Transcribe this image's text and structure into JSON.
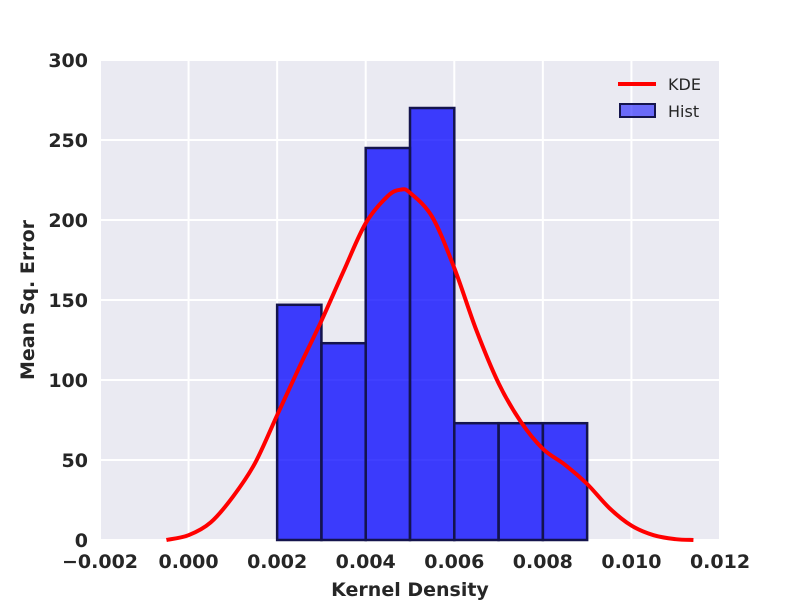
{
  "chart_data": {
    "type": "bar",
    "xlabel": "Kernel Density",
    "ylabel": "Mean Sq. Error",
    "xlim": [
      -0.002,
      0.012
    ],
    "ylim": [
      0,
      300
    ],
    "x_ticks": [
      "−0.002",
      "0.000",
      "0.002",
      "0.004",
      "0.006",
      "0.008",
      "0.010",
      "0.012"
    ],
    "x_tick_values": [
      -0.002,
      0.0,
      0.002,
      0.004,
      0.006,
      0.008,
      0.01,
      0.012
    ],
    "y_ticks": [
      "0",
      "50",
      "100",
      "150",
      "200",
      "250",
      "300"
    ],
    "y_tick_values": [
      0,
      50,
      100,
      150,
      200,
      250,
      300
    ],
    "grid": true,
    "legend_position": "top-right",
    "series": [
      {
        "name": "Hist",
        "kind": "histogram",
        "color": "#0000ff",
        "edge_color": "#14144d",
        "bin_edges": [
          0.002,
          0.003,
          0.004,
          0.005,
          0.006,
          0.007,
          0.008,
          0.009
        ],
        "values": [
          147,
          123,
          245,
          270,
          73,
          73,
          73
        ]
      },
      {
        "name": "KDE",
        "kind": "line",
        "color": "#ff0000",
        "x": [
          -0.0005,
          0.0,
          0.0005,
          0.001,
          0.0015,
          0.002,
          0.0025,
          0.003,
          0.0035,
          0.004,
          0.0045,
          0.0048,
          0.005,
          0.0055,
          0.006,
          0.0065,
          0.007,
          0.0075,
          0.008,
          0.0085,
          0.009,
          0.0095,
          0.01,
          0.0105,
          0.011,
          0.0114
        ],
        "y": [
          0,
          3,
          11,
          27,
          48,
          78,
          108,
          137,
          168,
          198,
          215,
          219,
          217,
          202,
          170,
          131,
          98,
          74,
          57,
          47,
          35,
          20,
          9,
          3,
          0.5,
          0
        ]
      }
    ]
  }
}
